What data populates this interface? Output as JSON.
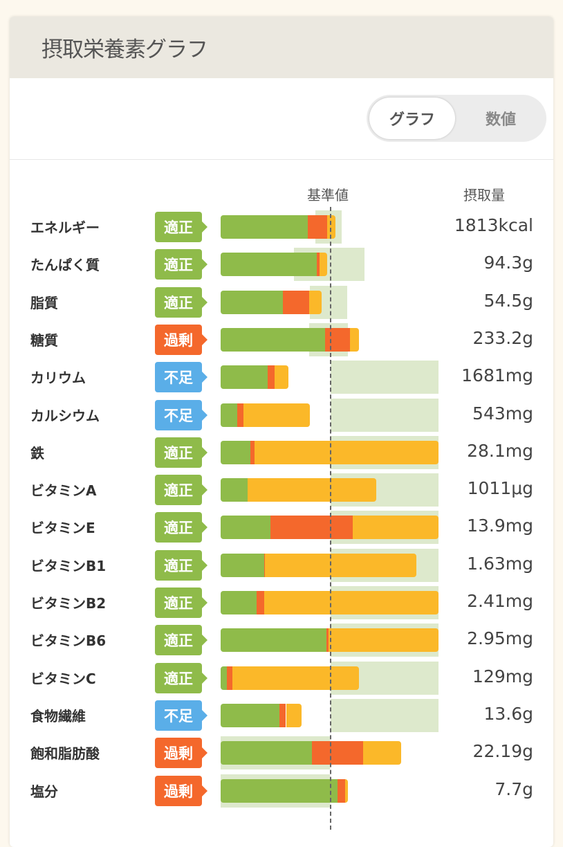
{
  "header": {
    "title": "摂取栄養素グラフ"
  },
  "toggle": {
    "graph": "グラフ",
    "numeric": "数値",
    "selected": "グラフ"
  },
  "columns": {
    "reference": "基準値",
    "intake": "摂取量"
  },
  "colors": {
    "green": "#8fbb4a",
    "red": "#f4682c",
    "yellow": "#fbb829",
    "band": "#dde9cc",
    "ok": "#8fbb4a",
    "excess": "#f4682c",
    "lack": "#5aaee8"
  },
  "chart_data": {
    "type": "bar",
    "stacked": true,
    "orientation": "horizontal",
    "xlim": [
      0,
      200
    ],
    "reference_line": 100,
    "unit": "% of reference",
    "series_names": [
      "green",
      "red",
      "yellow"
    ],
    "rows": [
      {
        "name": "エネルギー",
        "status": "適正",
        "status_type": "ok",
        "value": "1813kcal",
        "segments": [
          80,
          17.5,
          8.2
        ],
        "band": [
          87,
          111
        ]
      },
      {
        "name": "たんぱく質",
        "status": "適正",
        "status_type": "ok",
        "value": "94.3g",
        "segments": [
          88,
          2.6,
          6.9
        ],
        "band": [
          67,
          132
        ]
      },
      {
        "name": "脂質",
        "status": "適正",
        "status_type": "ok",
        "value": "54.5g",
        "segments": [
          57,
          24,
          12
        ],
        "band": [
          82,
          116
        ]
      },
      {
        "name": "糖質",
        "status": "過剰",
        "status_type": "excess",
        "value": "233.2g",
        "segments": [
          96,
          23,
          8
        ],
        "band": [
          81,
          117
        ]
      },
      {
        "name": "カリウム",
        "status": "不足",
        "status_type": "lack",
        "value": "1681mg",
        "segments": [
          43,
          6.5,
          13
        ],
        "band": [
          101,
          200
        ]
      },
      {
        "name": "カルシウム",
        "status": "不足",
        "status_type": "lack",
        "value": "543mg",
        "segments": [
          15,
          6,
          61
        ],
        "band": [
          101,
          200
        ]
      },
      {
        "name": "鉄",
        "status": "適正",
        "status_type": "ok",
        "value": "28.1mg",
        "segments": [
          27,
          4,
          169
        ],
        "band": [
          101,
          200
        ]
      },
      {
        "name": "ビタミンA",
        "status": "適正",
        "status_type": "ok",
        "value": "1011μg",
        "segments": [
          25,
          0,
          118
        ],
        "band": [
          101,
          200
        ]
      },
      {
        "name": "ビタミンE",
        "status": "適正",
        "status_type": "ok",
        "value": "13.9mg",
        "segments": [
          46,
          75,
          79
        ],
        "band": [
          101,
          200
        ]
      },
      {
        "name": "ビタミンB1",
        "status": "適正",
        "status_type": "ok",
        "value": "1.63mg",
        "segments": [
          40,
          0.6,
          139
        ],
        "band": [
          101,
          200
        ]
      },
      {
        "name": "ビタミンB2",
        "status": "適正",
        "status_type": "ok",
        "value": "2.41mg",
        "segments": [
          33,
          7,
          160
        ],
        "band": [
          101,
          200
        ]
      },
      {
        "name": "ビタミンB6",
        "status": "適正",
        "status_type": "ok",
        "value": "2.95mg",
        "segments": [
          97,
          2,
          101
        ],
        "band": [
          101,
          200
        ]
      },
      {
        "name": "ビタミンC",
        "status": "適正",
        "status_type": "ok",
        "value": "129mg",
        "segments": [
          6,
          5,
          116
        ],
        "band": [
          101,
          200
        ]
      },
      {
        "name": "食物繊維",
        "status": "不足",
        "status_type": "lack",
        "value": "13.6g",
        "segments": [
          54,
          6,
          14
        ],
        "band": [
          101,
          200
        ]
      },
      {
        "name": "飽和脂肪酸",
        "status": "過剰",
        "status_type": "excess",
        "value": "22.19g",
        "segments": [
          84,
          47,
          35
        ],
        "band": [
          0,
          100
        ]
      },
      {
        "name": "塩分",
        "status": "過剰",
        "status_type": "excess",
        "value": "7.7g",
        "segments": [
          107,
          7.5,
          2.5
        ],
        "band": [
          0,
          100
        ]
      }
    ]
  }
}
